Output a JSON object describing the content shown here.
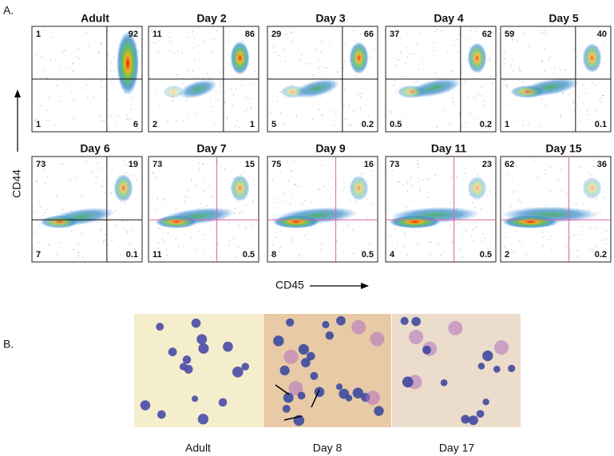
{
  "label_a": "A.",
  "label_b": "B.",
  "y_axis": "CD44",
  "x_axis": "CD45",
  "panels": [
    {
      "title": "Adult",
      "ul": "1",
      "ur": "92",
      "ll": "1",
      "lr": "6"
    },
    {
      "title": "Day 2",
      "ul": "11",
      "ur": "86",
      "ll": "2",
      "lr": "1"
    },
    {
      "title": "Day 3",
      "ul": "29",
      "ur": "66",
      "ll": "5",
      "lr": "0.2"
    },
    {
      "title": "Day 4",
      "ul": "37",
      "ur": "62",
      "ll": "0.5",
      "lr": "0.2"
    },
    {
      "title": "Day 5",
      "ul": "59",
      "ur": "40",
      "ll": "1",
      "lr": "0.1"
    },
    {
      "title": "Day  6",
      "ul": "73",
      "ur": "19",
      "ll": "7",
      "lr": "0.1"
    },
    {
      "title": "Day 7",
      "ul": "73",
      "ur": "15",
      "ll": "11",
      "lr": "0.5"
    },
    {
      "title": "Day 9",
      "ul": "75",
      "ur": "16",
      "ll": "8",
      "lr": "0.5"
    },
    {
      "title": "Day  11",
      "ul": "73",
      "ur": "23",
      "ll": "4",
      "lr": "0.5"
    },
    {
      "title": "Day 15",
      "ul": "62",
      "ur": "36",
      "ll": "2",
      "lr": "0.2"
    }
  ],
  "images": [
    "Adult",
    "Day 8",
    "Day 17"
  ]
}
